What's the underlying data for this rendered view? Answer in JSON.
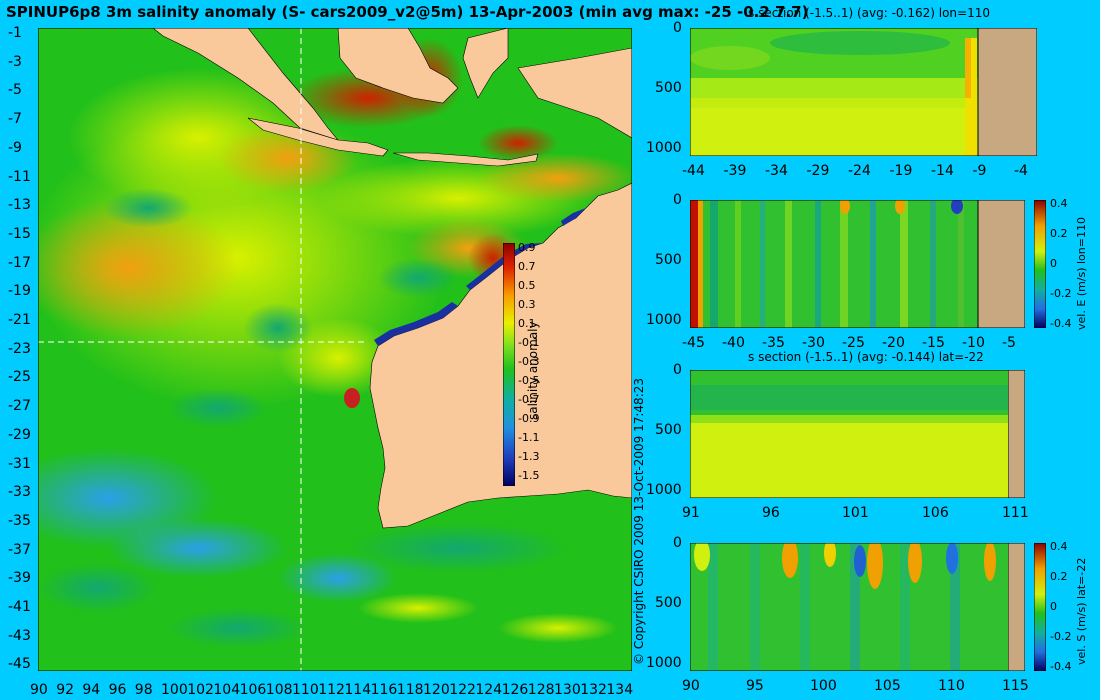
{
  "title": "SPINUP6p8 3m salinity anomaly (S- cars2009_v2@5m) 13-Apr-2003 (min avg max: -25 -0.2 7.7)",
  "copyright": "© Copyright CSIRO 2009   13-Oct-2009 17:48:23",
  "colors": {
    "background": "#00ccff",
    "land": "#f9c89b",
    "land_section": "#c8a880",
    "ocean_green": "#22c01a",
    "guide_line": "#ffffff"
  },
  "map": {
    "lon_ticks": [
      "90",
      "92",
      "94",
      "96",
      "98",
      "100",
      "102",
      "104",
      "106",
      "108",
      "110",
      "112",
      "114",
      "116",
      "118",
      "120",
      "122",
      "124",
      "126",
      "128",
      "130",
      "132",
      "134"
    ],
    "lat_ticks": [
      "-1",
      "-3",
      "-5",
      "-7",
      "-9",
      "-11",
      "-13",
      "-15",
      "-17",
      "-19",
      "-21",
      "-23",
      "-25",
      "-27",
      "-29",
      "-31",
      "-33",
      "-35",
      "-37",
      "-39",
      "-41",
      "-43",
      "-45"
    ],
    "colorbar": {
      "label": "salinity anomaly",
      "ticks": [
        "0.9",
        "0.7",
        "0.5",
        "0.3",
        "0.1",
        "-0.1",
        "-0.3",
        "-0.5",
        "-0.7",
        "-0.9",
        "-1.1",
        "-1.3",
        "-1.5"
      ]
    }
  },
  "sections": [
    {
      "name": "s-section-lon",
      "title": "s section (-1.5..1) (avg: -0.162) lon=110",
      "x_ticks": [
        "-44",
        "-39",
        "-34",
        "-29",
        "-24",
        "-19",
        "-14",
        "-9",
        "-4"
      ],
      "y_ticks": [
        "0",
        "500",
        "1000"
      ]
    },
    {
      "name": "velE-section",
      "title": "",
      "x_ticks": [
        "-45",
        "-40",
        "-35",
        "-30",
        "-25",
        "-20",
        "-15",
        "-10",
        "-5"
      ],
      "y_ticks": [
        "0",
        "500",
        "1000"
      ],
      "colorbar": {
        "label": "vel. E (m/s) lon=110",
        "ticks": [
          "0.4",
          "0.2",
          "0",
          "-0.2",
          "-0.4"
        ]
      }
    },
    {
      "name": "s-section-lat",
      "title": "s section (-1.5..1) (avg: -0.144) lat=-22",
      "x_ticks": [
        "91",
        "96",
        "101",
        "106",
        "111"
      ],
      "y_ticks": [
        "0",
        "500",
        "1000"
      ]
    },
    {
      "name": "velS-section",
      "title": "",
      "x_ticks": [
        "90",
        "95",
        "100",
        "105",
        "110",
        "115"
      ],
      "y_ticks": [
        "0",
        "500",
        "1000"
      ],
      "colorbar": {
        "label": "vel. S (m/s) lat=-22",
        "ticks": [
          "0.4",
          "0.2",
          "0",
          "-0.2",
          "-0.4"
        ]
      }
    }
  ]
}
